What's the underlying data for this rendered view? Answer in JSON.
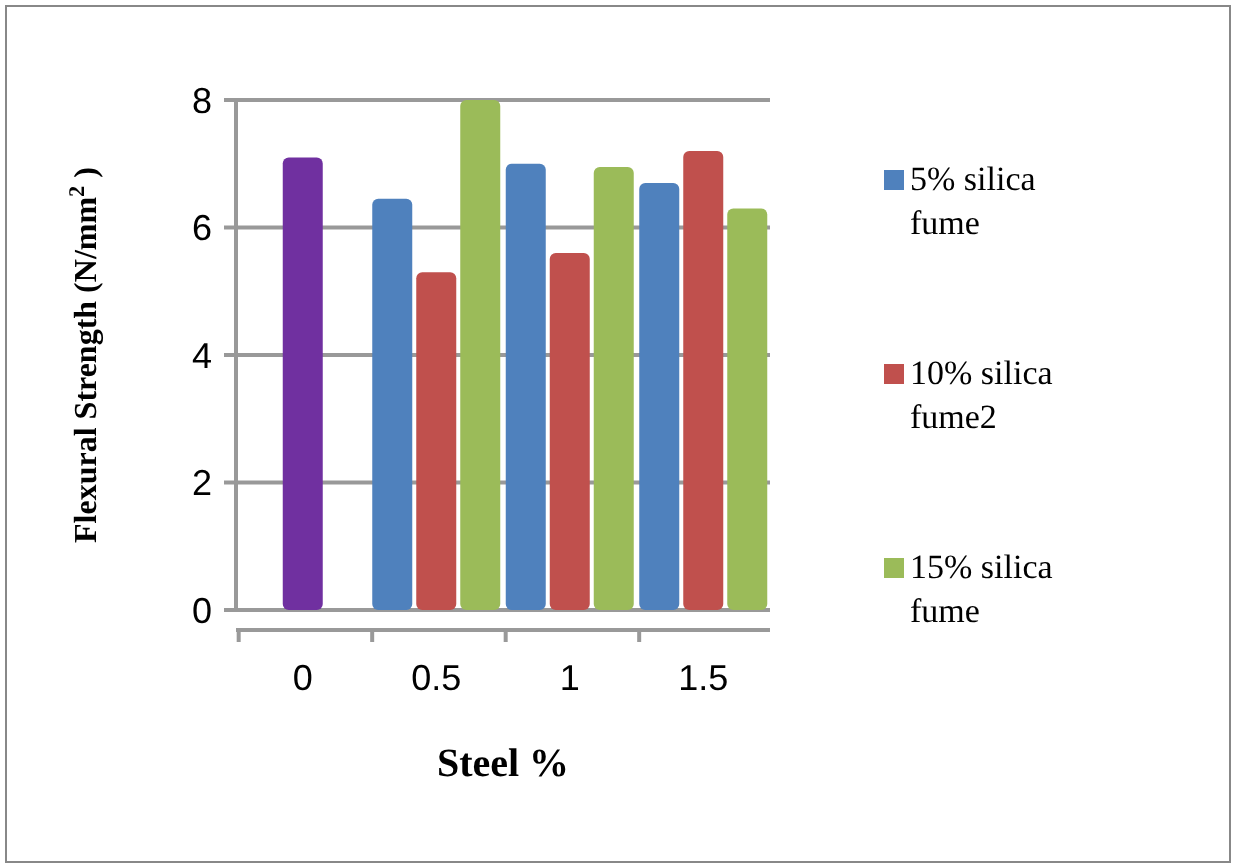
{
  "chart_data": {
    "type": "bar",
    "xlabel": "Steel %",
    "ylabel": "Flexural Strength (N/mm$^{2}$ )",
    "categories": [
      "0",
      "0.5",
      "1",
      "1.5"
    ],
    "series": [
      {
        "name": "5% silica fume",
        "color": "#4f81bd",
        "values": [
          null,
          6.45,
          7.0,
          6.7
        ]
      },
      {
        "name": "10% silica fume2",
        "color": "#c0504d",
        "values": [
          null,
          5.3,
          5.6,
          7.2
        ]
      },
      {
        "name": "15% silica fume",
        "color": "#9bbb59",
        "values": [
          null,
          8.0,
          6.95,
          6.3
        ]
      },
      {
        "color": "#7030a0",
        "values": [
          7.1,
          null,
          null,
          null
        ]
      }
    ],
    "ylim": [
      0,
      8
    ],
    "yticks": [
      0,
      2,
      4,
      6,
      8
    ],
    "grid": "y",
    "legend": "right"
  }
}
